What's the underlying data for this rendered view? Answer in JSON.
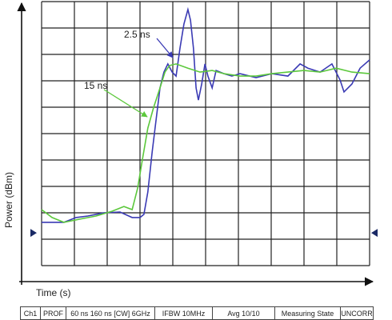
{
  "chart_data": {
    "type": "line",
    "xlabel": "Time (s)",
    "ylabel": "Power (dBm)",
    "xlim": [
      0,
      10
    ],
    "ylim": [
      0,
      10
    ],
    "xticks": [
      0,
      1,
      2,
      3,
      4,
      5,
      6,
      7,
      8,
      9,
      10
    ],
    "yticks": [
      0,
      1,
      2,
      3,
      4,
      5,
      6,
      7,
      8,
      9,
      10
    ],
    "grid": true,
    "reference_level": 1.24,
    "series": [
      {
        "name": "2.5 ns",
        "color": "#3a3ab4",
        "x": [
          0,
          0.68,
          1.05,
          1.41,
          1.9,
          2.39,
          2.76,
          3.0,
          3.12,
          3.24,
          3.37,
          3.49,
          3.61,
          3.73,
          3.85,
          3.98,
          4.1,
          4.22,
          4.34,
          4.46,
          4.54,
          4.63,
          4.71,
          4.78,
          4.88,
          4.98,
          5.07,
          5.2,
          5.32,
          5.56,
          5.8,
          6.05,
          6.54,
          7.02,
          7.51,
          7.88,
          8.12,
          8.49,
          8.85,
          9.1,
          9.22,
          9.46,
          9.71,
          10
        ],
        "values": [
          1.64,
          1.64,
          1.82,
          1.88,
          2.0,
          2.03,
          1.82,
          1.82,
          1.94,
          2.79,
          4.3,
          5.52,
          6.73,
          7.33,
          7.64,
          7.33,
          7.18,
          8.24,
          9.15,
          9.7,
          9.3,
          8.24,
          6.73,
          6.27,
          6.88,
          7.64,
          7.18,
          6.73,
          7.39,
          7.27,
          7.18,
          7.27,
          7.12,
          7.27,
          7.18,
          7.64,
          7.48,
          7.33,
          7.64,
          7.03,
          6.58,
          6.88,
          7.48,
          7.79
        ]
      },
      {
        "name": "15 ns",
        "color": "#5cc83c",
        "x": [
          0,
          0.32,
          0.68,
          1.17,
          1.66,
          2.15,
          2.51,
          2.76,
          2.93,
          3.07,
          3.24,
          3.41,
          3.61,
          3.76,
          3.9,
          4.1,
          4.46,
          4.83,
          5.2,
          5.56,
          6.05,
          6.54,
          7.02,
          7.51,
          8.0,
          8.49,
          8.98,
          9.46,
          10
        ],
        "values": [
          2.12,
          1.82,
          1.64,
          1.76,
          1.88,
          2.06,
          2.24,
          2.12,
          2.94,
          4.0,
          5.21,
          5.97,
          6.73,
          7.33,
          7.58,
          7.64,
          7.48,
          7.33,
          7.39,
          7.27,
          7.18,
          7.18,
          7.27,
          7.33,
          7.39,
          7.33,
          7.48,
          7.33,
          7.27
        ]
      }
    ]
  },
  "status_bar": [
    "Ch1",
    "PROF",
    "60 ns 160 ns [CW] 6GHz",
    "IFBW 10MHz",
    "Avg 10/10",
    "Measuring State",
    "UNCORR"
  ]
}
